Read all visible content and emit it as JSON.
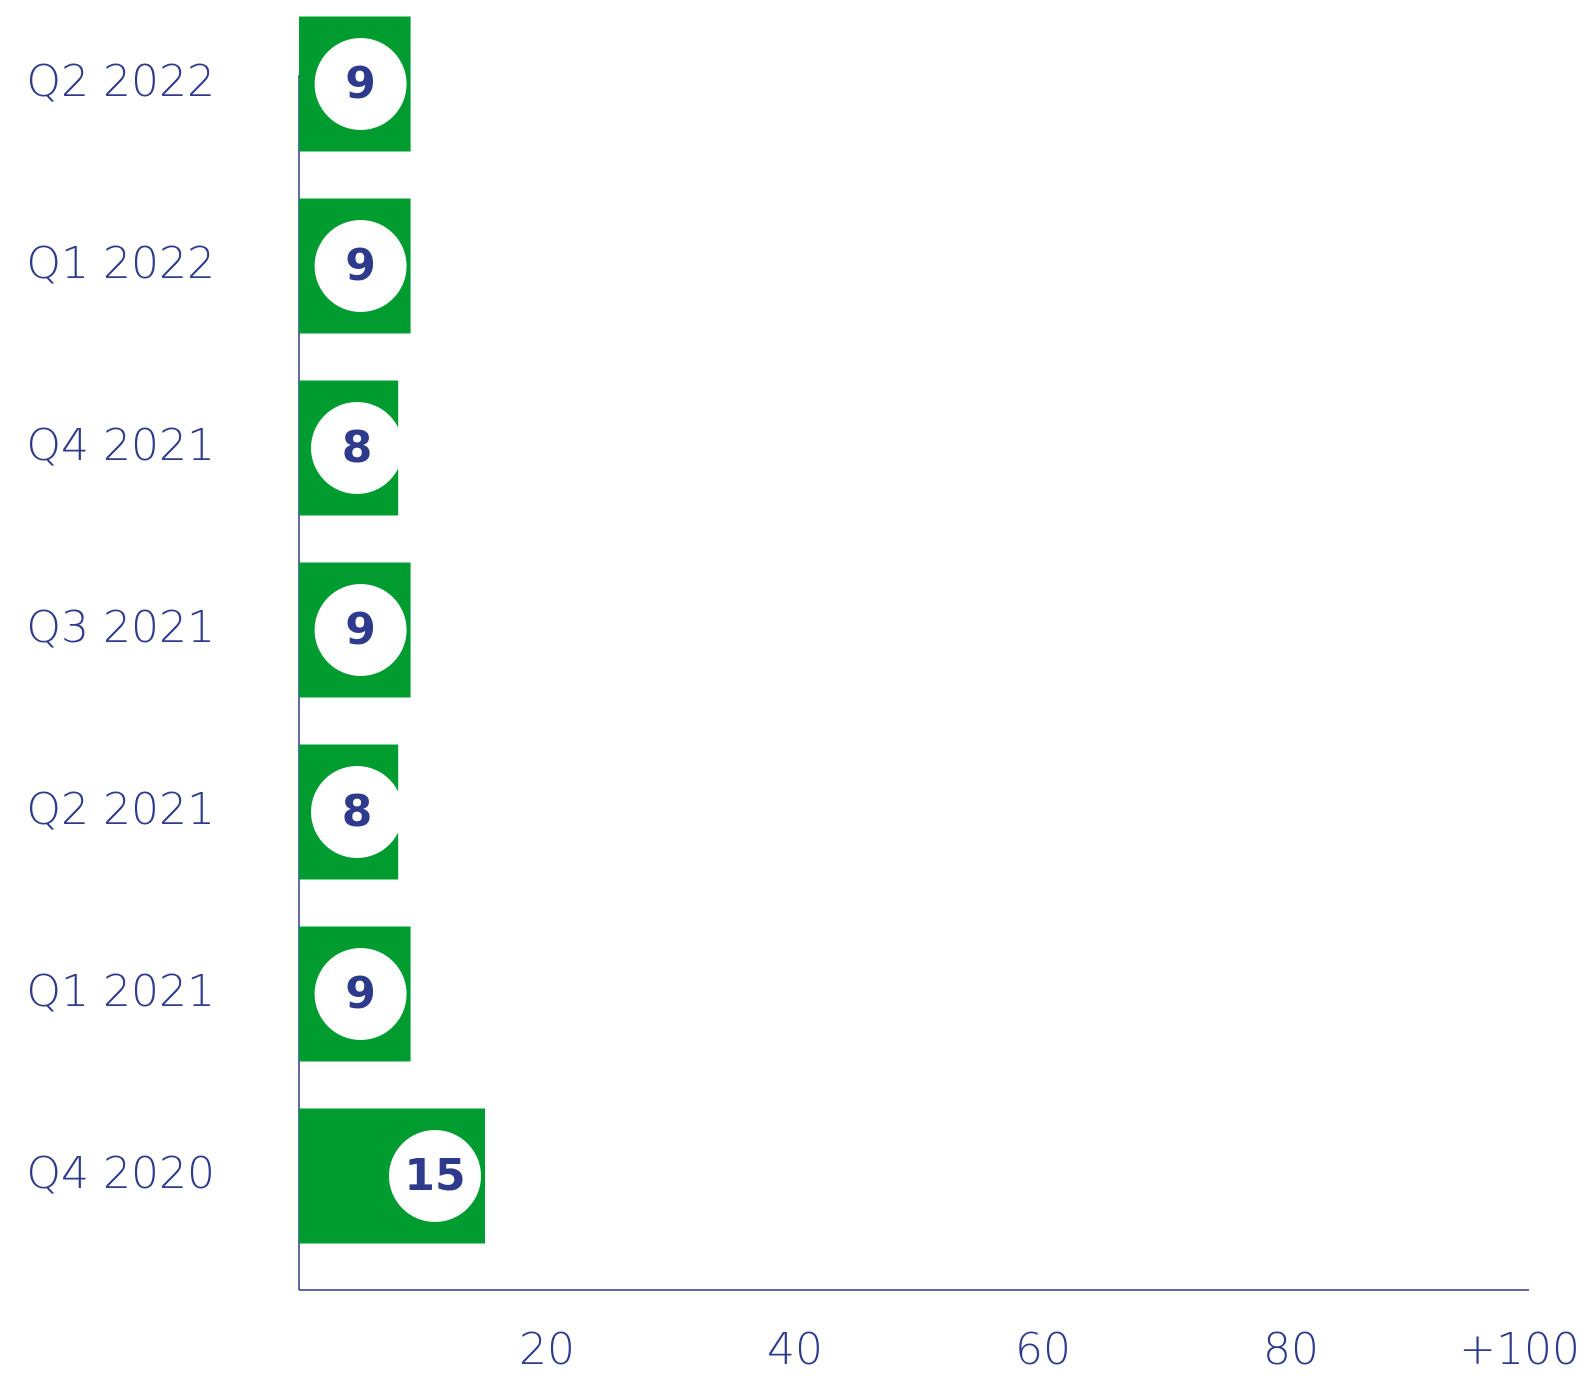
{
  "chart_data": {
    "type": "barh",
    "categories": [
      "Q2 2022",
      "Q1 2022",
      "Q4 2021",
      "Q3 2021",
      "Q2 2021",
      "Q1 2021",
      "Q4 2020"
    ],
    "values": [
      9,
      9,
      8,
      9,
      8,
      9,
      15
    ],
    "color": "#009c30",
    "xlim": [
      0,
      100
    ],
    "xticks": [
      20,
      40,
      60,
      80,
      {
        "value": 100,
        "label": "+100"
      }
    ],
    "grid": false
  }
}
